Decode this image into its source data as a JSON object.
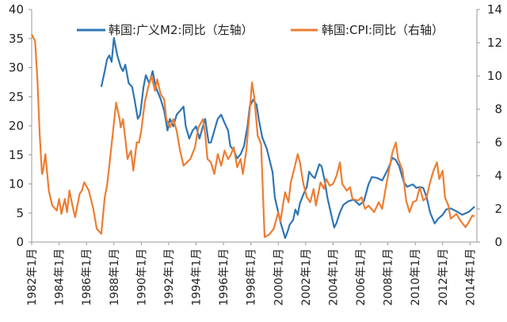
{
  "chart_data": {
    "type": "line",
    "title": "",
    "xlabel": "",
    "ylabel_left": "",
    "ylabel_right": "",
    "grid": false,
    "legend_position": "top",
    "xlim": [
      "1982-01",
      "2014-07"
    ],
    "ylim_left": [
      0,
      40
    ],
    "ylim_right": [
      0,
      14
    ],
    "yticks_left": [
      "0",
      "5",
      "10",
      "15",
      "20",
      "25",
      "30",
      "35",
      "40"
    ],
    "yticks_right": [
      "0",
      "2",
      "4",
      "6",
      "8",
      "10",
      "12",
      "14"
    ],
    "xticks": [
      {
        "date": "1982-01",
        "label": "1982年1月"
      },
      {
        "date": "1984-01",
        "label": "1984年1月"
      },
      {
        "date": "1986-01",
        "label": "1986年1月"
      },
      {
        "date": "1988-01",
        "label": "1988年1月"
      },
      {
        "date": "1990-01",
        "label": "1990年1月"
      },
      {
        "date": "1992-01",
        "label": "1992年1月"
      },
      {
        "date": "1994-01",
        "label": "1994年1月"
      },
      {
        "date": "1996-01",
        "label": "1996年1月"
      },
      {
        "date": "1998-01",
        "label": "1998年1月"
      },
      {
        "date": "2000-01",
        "label": "2000年1月"
      },
      {
        "date": "2002-01",
        "label": "2002年1月"
      },
      {
        "date": "2004-01",
        "label": "2004年1月"
      },
      {
        "date": "2006-01",
        "label": "2006年1月"
      },
      {
        "date": "2008-01",
        "label": "2008年1月"
      },
      {
        "date": "2010-01",
        "label": "2010年1月"
      },
      {
        "date": "2012-01",
        "label": "2012年1月"
      },
      {
        "date": "2014-01",
        "label": "2014年1月"
      }
    ],
    "series": [
      {
        "name": "韩国:广义M2:同比（左轴）",
        "axis": "left",
        "color": "#2E75B6",
        "points": [
          [
            "1987-02",
            26.7
          ],
          [
            "1987-05",
            29.4
          ],
          [
            "1987-07",
            31.4
          ],
          [
            "1987-09",
            32.1
          ],
          [
            "1987-11",
            31.0
          ],
          [
            "1988-01",
            35.1
          ],
          [
            "1988-04",
            32.1
          ],
          [
            "1988-07",
            30.1
          ],
          [
            "1988-09",
            29.4
          ],
          [
            "1988-11",
            30.5
          ],
          [
            "1989-02",
            27.3
          ],
          [
            "1989-05",
            26.7
          ],
          [
            "1989-07",
            24.6
          ],
          [
            "1989-10",
            21.2
          ],
          [
            "1989-12",
            21.9
          ],
          [
            "1990-03",
            26.7
          ],
          [
            "1990-05",
            28.7
          ],
          [
            "1990-08",
            27.3
          ],
          [
            "1990-11",
            29.4
          ],
          [
            "1991-01",
            27.3
          ],
          [
            "1991-03",
            26.0
          ],
          [
            "1991-06",
            24.6
          ],
          [
            "1991-09",
            22.6
          ],
          [
            "1991-12",
            19.2
          ],
          [
            "1992-02",
            21.2
          ],
          [
            "1992-05",
            19.9
          ],
          [
            "1992-08",
            21.9
          ],
          [
            "1992-11",
            22.6
          ],
          [
            "1993-02",
            23.3
          ],
          [
            "1993-04",
            19.9
          ],
          [
            "1993-07",
            17.8
          ],
          [
            "1993-10",
            19.2
          ],
          [
            "1994-01",
            19.9
          ],
          [
            "1994-04",
            17.8
          ],
          [
            "1994-06",
            19.2
          ],
          [
            "1994-09",
            21.2
          ],
          [
            "1994-12",
            17.1
          ],
          [
            "1995-02",
            17.1
          ],
          [
            "1995-05",
            19.2
          ],
          [
            "1995-08",
            21.2
          ],
          [
            "1995-11",
            21.9
          ],
          [
            "1996-02",
            20.5
          ],
          [
            "1996-05",
            19.2
          ],
          [
            "1996-07",
            16.5
          ],
          [
            "1996-10",
            15.8
          ],
          [
            "1997-01",
            14.4
          ],
          [
            "1997-04",
            15.1
          ],
          [
            "1997-07",
            16.5
          ],
          [
            "1997-10",
            19.9
          ],
          [
            "1997-12",
            23.3
          ],
          [
            "1998-03",
            24.5
          ],
          [
            "1998-06",
            23.6
          ],
          [
            "1998-08",
            21.0
          ],
          [
            "1998-11",
            18.0
          ],
          [
            "1999-03",
            16.0
          ],
          [
            "1999-08",
            12.0
          ],
          [
            "1999-10",
            7.7
          ],
          [
            "2000-01",
            5.1
          ],
          [
            "2000-03",
            3.4
          ],
          [
            "2000-05",
            2.1
          ],
          [
            "2000-07",
            0.7
          ],
          [
            "2000-09",
            1.7
          ],
          [
            "2000-11",
            3.0
          ],
          [
            "2001-02",
            3.8
          ],
          [
            "2001-04",
            5.6
          ],
          [
            "2001-06",
            4.7
          ],
          [
            "2001-08",
            6.7
          ],
          [
            "2001-11",
            8.2
          ],
          [
            "2002-02",
            9.5
          ],
          [
            "2002-04",
            12.1
          ],
          [
            "2002-07",
            11.3
          ],
          [
            "2002-09",
            11.0
          ],
          [
            "2003-01",
            13.4
          ],
          [
            "2003-03",
            13.0
          ],
          [
            "2003-06",
            10.3
          ],
          [
            "2003-08",
            7.7
          ],
          [
            "2003-11",
            5.1
          ],
          [
            "2004-02",
            2.5
          ],
          [
            "2004-04",
            3.3
          ],
          [
            "2004-07",
            5.1
          ],
          [
            "2004-10",
            6.4
          ],
          [
            "2005-02",
            7.0
          ],
          [
            "2005-07",
            7.3
          ],
          [
            "2005-12",
            6.4
          ],
          [
            "2006-04",
            7.0
          ],
          [
            "2006-08",
            9.9
          ],
          [
            "2006-11",
            11.2
          ],
          [
            "2007-04",
            11.0
          ],
          [
            "2007-08",
            10.6
          ],
          [
            "2008-01",
            12.5
          ],
          [
            "2008-05",
            14.5
          ],
          [
            "2008-08",
            14.1
          ],
          [
            "2008-11",
            13.0
          ],
          [
            "2009-03",
            10.3
          ],
          [
            "2009-06",
            9.5
          ],
          [
            "2009-09",
            9.8
          ],
          [
            "2009-11",
            9.9
          ],
          [
            "2010-02",
            9.3
          ],
          [
            "2010-05",
            9.5
          ],
          [
            "2010-08",
            9.3
          ],
          [
            "2010-11",
            7.7
          ],
          [
            "2011-02",
            5.1
          ],
          [
            "2011-06",
            3.2
          ],
          [
            "2011-09",
            4.0
          ],
          [
            "2012-01",
            4.7
          ],
          [
            "2012-04",
            5.6
          ],
          [
            "2012-08",
            5.8
          ],
          [
            "2013-01",
            5.3
          ],
          [
            "2013-06",
            4.7
          ],
          [
            "2013-12",
            5.2
          ],
          [
            "2014-05",
            6.1
          ]
        ]
      },
      {
        "name": "韩国:CPI:同比（右轴）",
        "axis": "right",
        "color": "#ED7D31",
        "points": [
          [
            "1982-01",
            12.5
          ],
          [
            "1982-04",
            12.1
          ],
          [
            "1982-06",
            9.8
          ],
          [
            "1982-08",
            6.5
          ],
          [
            "1982-10",
            4.1
          ],
          [
            "1982-11",
            4.3
          ],
          [
            "1983-01",
            5.3
          ],
          [
            "1983-02",
            4.6
          ],
          [
            "1983-04",
            3.1
          ],
          [
            "1983-07",
            2.2
          ],
          [
            "1983-11",
            1.9
          ],
          [
            "1984-01",
            2.6
          ],
          [
            "1984-03",
            1.7
          ],
          [
            "1984-06",
            2.6
          ],
          [
            "1984-08",
            1.8
          ],
          [
            "1984-10",
            3.1
          ],
          [
            "1985-01",
            2.1
          ],
          [
            "1985-03",
            1.5
          ],
          [
            "1985-07",
            2.9
          ],
          [
            "1985-09",
            3.1
          ],
          [
            "1985-11",
            3.6
          ],
          [
            "1986-03",
            3.1
          ],
          [
            "1986-07",
            2.0
          ],
          [
            "1986-10",
            0.8
          ],
          [
            "1987-02",
            0.5
          ],
          [
            "1987-05",
            2.7
          ],
          [
            "1987-07",
            3.4
          ],
          [
            "1987-09",
            4.6
          ],
          [
            "1987-12",
            6.5
          ],
          [
            "1988-03",
            8.4
          ],
          [
            "1988-06",
            7.4
          ],
          [
            "1988-07",
            6.9
          ],
          [
            "1988-09",
            7.4
          ],
          [
            "1988-11",
            6.2
          ],
          [
            "1989-01",
            5.0
          ],
          [
            "1989-04",
            5.5
          ],
          [
            "1989-06",
            4.3
          ],
          [
            "1989-09",
            6.0
          ],
          [
            "1989-11",
            6.0
          ],
          [
            "1990-01",
            6.7
          ],
          [
            "1990-04",
            8.4
          ],
          [
            "1990-07",
            9.3
          ],
          [
            "1990-10",
            10.0
          ],
          [
            "1991-01",
            9.1
          ],
          [
            "1991-03",
            9.8
          ],
          [
            "1991-06",
            8.9
          ],
          [
            "1991-09",
            8.6
          ],
          [
            "1991-11",
            7.4
          ],
          [
            "1992-02",
            6.9
          ],
          [
            "1992-05",
            7.4
          ],
          [
            "1992-08",
            6.7
          ],
          [
            "1992-11",
            5.5
          ],
          [
            "1993-02",
            4.6
          ],
          [
            "1993-05",
            4.8
          ],
          [
            "1993-08",
            5.0
          ],
          [
            "1993-12",
            5.7
          ],
          [
            "1994-03",
            6.9
          ],
          [
            "1994-07",
            7.4
          ],
          [
            "1994-09",
            6.5
          ],
          [
            "1994-11",
            5.0
          ],
          [
            "1995-02",
            4.8
          ],
          [
            "1995-05",
            4.1
          ],
          [
            "1995-08",
            5.3
          ],
          [
            "1995-11",
            4.6
          ],
          [
            "1996-02",
            5.5
          ],
          [
            "1996-05",
            5.0
          ],
          [
            "1996-07",
            5.2
          ],
          [
            "1996-10",
            5.7
          ],
          [
            "1997-01",
            4.5
          ],
          [
            "1997-04",
            5.0
          ],
          [
            "1997-06",
            4.1
          ],
          [
            "1997-09",
            5.5
          ],
          [
            "1997-12",
            7.9
          ],
          [
            "1998-02",
            9.6
          ],
          [
            "1998-04",
            8.7
          ],
          [
            "1998-07",
            6.4
          ],
          [
            "1998-10",
            5.9
          ],
          [
            "1999-01",
            0.3
          ],
          [
            "1999-05",
            0.45
          ],
          [
            "1999-09",
            0.8
          ],
          [
            "2000-01",
            1.8
          ],
          [
            "2000-03",
            1.25
          ],
          [
            "2000-05",
            2.2
          ],
          [
            "2000-07",
            3.0
          ],
          [
            "2000-10",
            2.4
          ],
          [
            "2000-12",
            3.6
          ],
          [
            "2001-03",
            4.4
          ],
          [
            "2001-06",
            5.3
          ],
          [
            "2001-08",
            4.8
          ],
          [
            "2001-11",
            3.5
          ],
          [
            "2002-02",
            2.7
          ],
          [
            "2002-05",
            2.4
          ],
          [
            "2002-08",
            3.2
          ],
          [
            "2002-10",
            2.2
          ],
          [
            "2003-02",
            3.6
          ],
          [
            "2003-05",
            3.2
          ],
          [
            "2003-07",
            3.8
          ],
          [
            "2003-10",
            3.4
          ],
          [
            "2004-01",
            3.5
          ],
          [
            "2004-04",
            4.0
          ],
          [
            "2004-07",
            4.8
          ],
          [
            "2004-09",
            3.5
          ],
          [
            "2005-01",
            3.1
          ],
          [
            "2005-04",
            3.3
          ],
          [
            "2005-06",
            2.6
          ],
          [
            "2005-11",
            2.5
          ],
          [
            "2006-02",
            2.7
          ],
          [
            "2006-05",
            2.0
          ],
          [
            "2006-08",
            2.2
          ],
          [
            "2007-01",
            1.8
          ],
          [
            "2007-05",
            2.4
          ],
          [
            "2007-08",
            2.0
          ],
          [
            "2007-11",
            3.2
          ],
          [
            "2008-02",
            4.3
          ],
          [
            "2008-05",
            5.4
          ],
          [
            "2008-08",
            6.0
          ],
          [
            "2008-10",
            5.0
          ],
          [
            "2009-02",
            4.3
          ],
          [
            "2009-05",
            2.5
          ],
          [
            "2009-08",
            1.8
          ],
          [
            "2009-11",
            2.4
          ],
          [
            "2010-02",
            2.5
          ],
          [
            "2010-05",
            3.3
          ],
          [
            "2010-08",
            2.5
          ],
          [
            "2010-11",
            2.7
          ],
          [
            "2011-02",
            3.6
          ],
          [
            "2011-05",
            4.3
          ],
          [
            "2011-08",
            4.8
          ],
          [
            "2011-10",
            3.8
          ],
          [
            "2012-01",
            4.3
          ],
          [
            "2012-03",
            2.7
          ],
          [
            "2012-06",
            2.2
          ],
          [
            "2012-08",
            1.4
          ],
          [
            "2013-01",
            1.7
          ],
          [
            "2013-05",
            1.25
          ],
          [
            "2013-09",
            0.9
          ],
          [
            "2013-12",
            1.2
          ],
          [
            "2014-03",
            1.6
          ],
          [
            "2014-05",
            1.55
          ]
        ]
      }
    ]
  }
}
